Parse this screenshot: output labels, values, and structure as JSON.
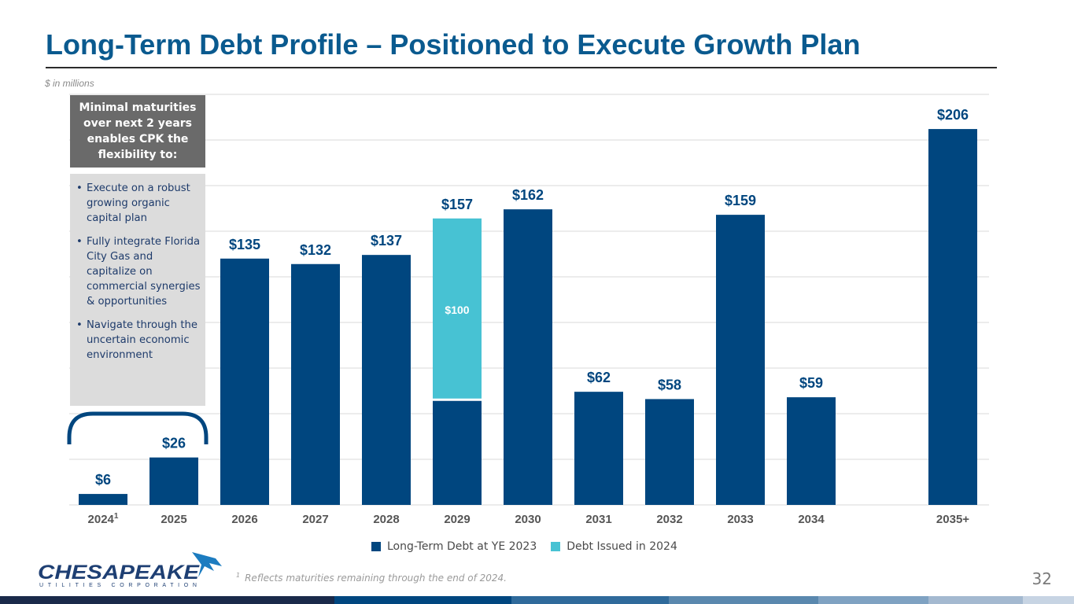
{
  "page": {
    "title": "Long-Term Debt Profile – Positioned to Execute Growth Plan",
    "units_note": "$ in millions",
    "page_number": "32",
    "footnote_marker": "1",
    "footnote_text": "Reflects maturities remaining through the end of 2024.",
    "logo": {
      "name": "CHESAPEAKE",
      "subtitle": "UTILITIES CORPORATION"
    }
  },
  "callout": {
    "heading": "Minimal maturities over next 2 years enables CPK the flexibility to:",
    "bullets": [
      "Execute on a robust growing organic capital plan",
      "Fully integrate Florida City Gas and capitalize on commercial synergies & opportunities",
      "Navigate through the uncertain economic environment"
    ],
    "bullet_glyph": "•"
  },
  "colors": {
    "primary": "#00467f",
    "secondary": "#47c2d3",
    "title": "#0a5a8f",
    "callout_head_bg": "#6a6a6a",
    "callout_body_bg": "#dcdcdc",
    "bracket": "#00467f",
    "stripe": [
      "#1a2a4a",
      "#00467f",
      "#2f6a9b",
      "#5a88ae",
      "#7fa2c2",
      "#a4b9d0",
      "#c7d4e3"
    ]
  },
  "chart_data": {
    "type": "bar",
    "stacked": true,
    "title": "",
    "xlabel": "",
    "ylabel": "$ in millions",
    "ylim": [
      0,
      225
    ],
    "grid": true,
    "gridline_step": 25,
    "legend_position": "bottom-center",
    "categories": [
      "2024",
      "2025",
      "2026",
      "2027",
      "2028",
      "2029",
      "2030",
      "2031",
      "2032",
      "2033",
      "2034",
      "",
      "2035+"
    ],
    "category_superscripts": [
      "1",
      "",
      "",
      "",
      "",
      "",
      "",
      "",
      "",
      "",
      "",
      "",
      ""
    ],
    "series": [
      {
        "name": "Long-Term Debt at YE 2023",
        "color": "#00467f",
        "values": [
          6,
          26,
          135,
          132,
          137,
          57,
          162,
          62,
          58,
          159,
          59,
          null,
          206
        ]
      },
      {
        "name": "Debt Issued in 2024",
        "color": "#47c2d3",
        "values": [
          0,
          0,
          0,
          0,
          0,
          100,
          0,
          0,
          0,
          0,
          0,
          null,
          0
        ],
        "data_labels": [
          "",
          "",
          "",
          "",
          "",
          "$100",
          "",
          "",
          "",
          "",
          "",
          "",
          ""
        ]
      }
    ],
    "total_labels": [
      "$6",
      "$26",
      "$135",
      "$132",
      "$137",
      "$157",
      "$162",
      "$62",
      "$58",
      "$159",
      "$59",
      "",
      "$206"
    ],
    "annotations": [
      {
        "type": "bracket",
        "spans": [
          "2024",
          "2025"
        ],
        "meaning": "Minimal maturities over next 2 years"
      }
    ]
  }
}
